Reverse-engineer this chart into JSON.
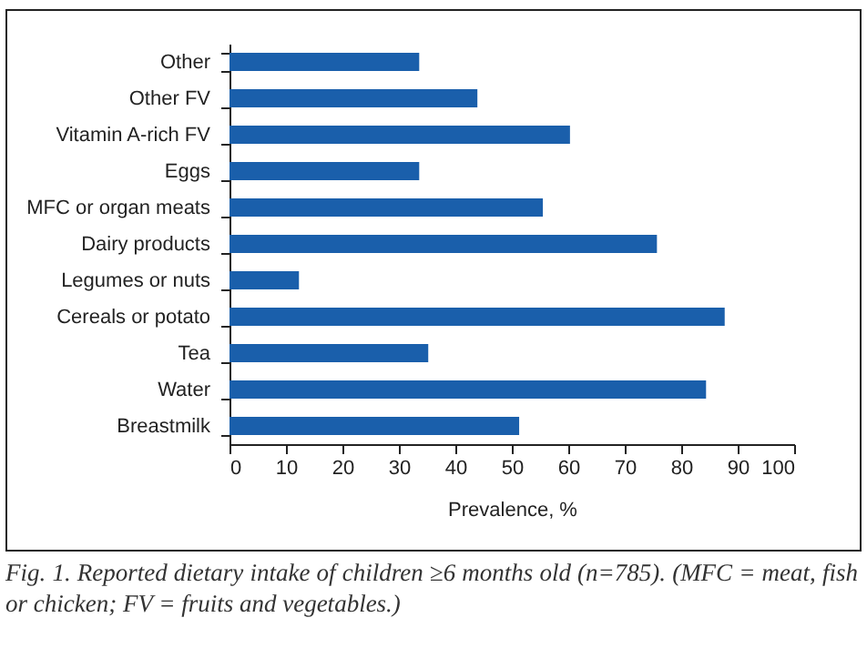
{
  "chart_data": {
    "type": "bar",
    "orientation": "horizontal",
    "xlabel": "Prevalence, %",
    "categories": [
      "Other",
      "Other FV",
      "Vitamin A-rich FV",
      "Eggs",
      "MFC or organ meats",
      "Dairy products",
      "Legumes or nuts",
      "Cereals or potato",
      "Tea",
      "Water",
      "Breastmilk"
    ],
    "values": [
      33.6,
      43.9,
      60.3,
      33.6,
      55.5,
      75.7,
      12.3,
      87.7,
      35.2,
      84.4,
      51.3
    ],
    "color": "#1a5fab",
    "xlim": [
      0,
      100
    ],
    "xticks": [
      0,
      10,
      20,
      30,
      40,
      50,
      60,
      70,
      80,
      90,
      100
    ],
    "grid": false,
    "annotations": [
      "Fig. 1. Reported dietary intake of children ≥6 months old (n=785). (MFC = meat, fish or chicken; FV = fruits and vegetables.)"
    ]
  }
}
